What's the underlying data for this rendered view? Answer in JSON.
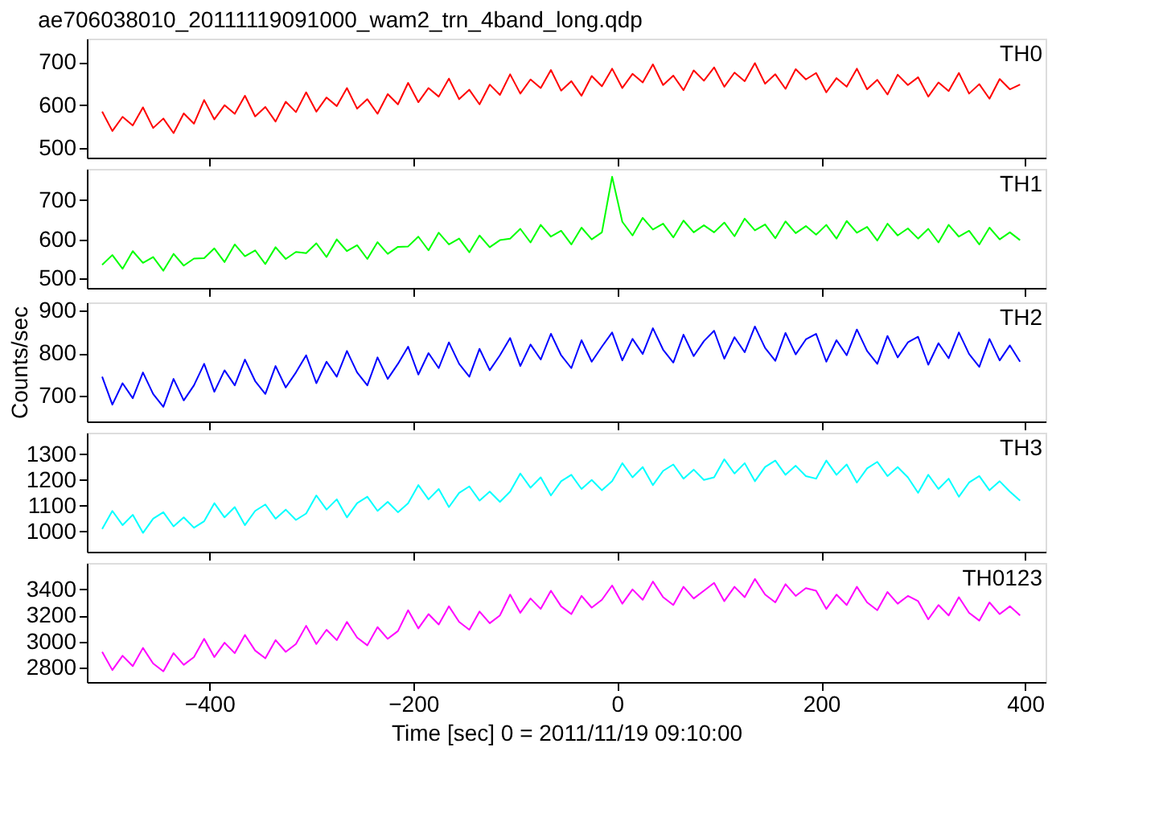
{
  "chart_data": [
    {
      "type": "line",
      "title": "ae706038010_20111119091000_wam2_trn_4band_long.qdp",
      "xlim": [
        -520,
        420
      ],
      "xticks": [
        -400,
        -200,
        0,
        200,
        400
      ],
      "ylim": [
        478,
        755
      ],
      "yticks": [
        500,
        600,
        700
      ],
      "tick_labels": "y",
      "x": [
        -505,
        -495,
        -485,
        -475,
        -465,
        -455,
        -445,
        -435,
        -425,
        -415,
        -405,
        -395,
        -385,
        -375,
        -365,
        -355,
        -345,
        -335,
        -325,
        -315,
        -305,
        -295,
        -285,
        -275,
        -265,
        -255,
        -245,
        -235,
        -225,
        -215,
        -205,
        -195,
        -185,
        -175,
        -165,
        -155,
        -145,
        -135,
        -125,
        -115,
        -105,
        -95,
        -85,
        -75,
        -65,
        -55,
        -45,
        -35,
        -25,
        -15,
        -5,
        5,
        15,
        25,
        35,
        45,
        55,
        65,
        75,
        85,
        95,
        105,
        115,
        125,
        135,
        145,
        155,
        165,
        175,
        185,
        195,
        205,
        215,
        225,
        235,
        245,
        255,
        265,
        275,
        285,
        295,
        305,
        315,
        325,
        335,
        345,
        355,
        365,
        375,
        385,
        395
      ],
      "series": [
        {
          "name": "TH0",
          "color": "#ff0000",
          "values": [
            585,
            540,
            573,
            553,
            595,
            547,
            569,
            535,
            581,
            557,
            612,
            567,
            600,
            580,
            622,
            574,
            596,
            562,
            608,
            584,
            630,
            585,
            618,
            598,
            640,
            592,
            614,
            580,
            626,
            602,
            652,
            607,
            640,
            620,
            662,
            614,
            636,
            602,
            648,
            624,
            672,
            627,
            660,
            640,
            682,
            634,
            656,
            622,
            668,
            644,
            685,
            640,
            673,
            653,
            695,
            647,
            669,
            635,
            681,
            657,
            688,
            643,
            676,
            656,
            698,
            650,
            672,
            638,
            684,
            660,
            675,
            630,
            663,
            643,
            685,
            637,
            659,
            625,
            671,
            647,
            665,
            620,
            653,
            633,
            675,
            627,
            649,
            615,
            661,
            637,
            648
          ]
        }
      ]
    },
    {
      "type": "line",
      "xlim": [
        -520,
        420
      ],
      "xticks": [
        -400,
        -200,
        0,
        200,
        400
      ],
      "ylim": [
        476,
        780
      ],
      "yticks": [
        500,
        600,
        700
      ],
      "tick_labels": "y",
      "x": [
        -505,
        -495,
        -485,
        -475,
        -465,
        -455,
        -445,
        -435,
        -425,
        -415,
        -405,
        -395,
        -385,
        -375,
        -365,
        -355,
        -345,
        -335,
        -325,
        -315,
        -305,
        -295,
        -285,
        -275,
        -265,
        -255,
        -245,
        -235,
        -225,
        -215,
        -205,
        -195,
        -185,
        -175,
        -165,
        -155,
        -145,
        -135,
        -125,
        -115,
        -105,
        -95,
        -85,
        -75,
        -65,
        -55,
        -45,
        -35,
        -25,
        -15,
        -5,
        5,
        15,
        25,
        35,
        45,
        55,
        65,
        75,
        85,
        95,
        105,
        115,
        125,
        135,
        145,
        155,
        165,
        175,
        185,
        195,
        205,
        215,
        225,
        235,
        245,
        255,
        265,
        275,
        285,
        295,
        305,
        315,
        325,
        335,
        345,
        355,
        365,
        375,
        385,
        395
      ],
      "series": [
        {
          "name": "TH1",
          "color": "#00ff00",
          "values": [
            535,
            560,
            525,
            570,
            540,
            555,
            520,
            563,
            533,
            551,
            552,
            577,
            542,
            587,
            557,
            572,
            537,
            580,
            550,
            568,
            565,
            590,
            555,
            600,
            570,
            585,
            550,
            593,
            563,
            581,
            582,
            607,
            572,
            617,
            587,
            602,
            567,
            610,
            580,
            598,
            602,
            627,
            592,
            637,
            607,
            622,
            587,
            630,
            600,
            618,
            760,
            645,
            610,
            655,
            625,
            640,
            605,
            648,
            618,
            636,
            618,
            643,
            608,
            653,
            623,
            638,
            603,
            646,
            616,
            634,
            612,
            637,
            602,
            647,
            617,
            632,
            597,
            640,
            610,
            628,
            602,
            627,
            592,
            637,
            607,
            622,
            587,
            630,
            600,
            618,
            598
          ]
        }
      ]
    },
    {
      "type": "line",
      "ylabel": "Counts/sec",
      "xlim": [
        -520,
        420
      ],
      "xticks": [
        -400,
        -200,
        0,
        200,
        400
      ],
      "ylim": [
        641,
        918
      ],
      "yticks": [
        700,
        800,
        900
      ],
      "tick_labels": "y",
      "x": [
        -505,
        -495,
        -485,
        -475,
        -465,
        -455,
        -445,
        -435,
        -425,
        -415,
        -405,
        -395,
        -385,
        -375,
        -365,
        -355,
        -345,
        -335,
        -325,
        -315,
        -305,
        -295,
        -285,
        -275,
        -265,
        -255,
        -245,
        -235,
        -225,
        -215,
        -205,
        -195,
        -185,
        -175,
        -165,
        -155,
        -145,
        -135,
        -125,
        -115,
        -105,
        -95,
        -85,
        -75,
        -65,
        -55,
        -45,
        -35,
        -25,
        -15,
        -5,
        5,
        15,
        25,
        35,
        45,
        55,
        65,
        75,
        85,
        95,
        105,
        115,
        125,
        135,
        145,
        155,
        165,
        175,
        185,
        195,
        205,
        215,
        225,
        235,
        245,
        255,
        265,
        275,
        285,
        295,
        305,
        315,
        325,
        335,
        345,
        355,
        365,
        375,
        385,
        395
      ],
      "series": [
        {
          "name": "TH2",
          "color": "#0000ff",
          "values": [
            745,
            680,
            730,
            695,
            755,
            705,
            675,
            740,
            690,
            725,
            775,
            710,
            760,
            725,
            785,
            735,
            705,
            770,
            720,
            755,
            795,
            730,
            780,
            745,
            805,
            755,
            725,
            790,
            740,
            775,
            815,
            750,
            800,
            765,
            825,
            775,
            745,
            810,
            760,
            795,
            835,
            770,
            820,
            785,
            845,
            795,
            765,
            830,
            780,
            815,
            848,
            783,
            833,
            798,
            858,
            808,
            778,
            843,
            793,
            828,
            852,
            787,
            837,
            802,
            862,
            812,
            782,
            847,
            797,
            832,
            845,
            780,
            830,
            795,
            855,
            805,
            775,
            840,
            790,
            825,
            838,
            773,
            823,
            788,
            848,
            798,
            768,
            833,
            783,
            818,
            780
          ]
        }
      ]
    },
    {
      "type": "line",
      "xlim": [
        -520,
        420
      ],
      "xticks": [
        -400,
        -200,
        0,
        200,
        400
      ],
      "ylim": [
        922,
        1383
      ],
      "yticks": [
        1000,
        1100,
        1200,
        1300
      ],
      "tick_labels": "y",
      "x": [
        -505,
        -495,
        -485,
        -475,
        -465,
        -455,
        -445,
        -435,
        -425,
        -415,
        -405,
        -395,
        -385,
        -375,
        -365,
        -355,
        -345,
        -335,
        -325,
        -315,
        -305,
        -295,
        -285,
        -275,
        -265,
        -255,
        -245,
        -235,
        -225,
        -215,
        -205,
        -195,
        -185,
        -175,
        -165,
        -155,
        -145,
        -135,
        -125,
        -115,
        -105,
        -95,
        -85,
        -75,
        -65,
        -55,
        -45,
        -35,
        -25,
        -15,
        -5,
        5,
        15,
        25,
        35,
        45,
        55,
        65,
        75,
        85,
        95,
        105,
        115,
        125,
        135,
        145,
        155,
        165,
        175,
        185,
        195,
        205,
        215,
        225,
        235,
        245,
        255,
        265,
        275,
        285,
        295,
        305,
        315,
        325,
        335,
        345,
        355,
        365,
        375,
        385,
        395
      ],
      "series": [
        {
          "name": "TH3",
          "color": "#00ffff",
          "values": [
            1010,
            1080,
            1025,
            1065,
            995,
            1050,
            1075,
            1020,
            1055,
            1015,
            1040,
            1110,
            1055,
            1095,
            1025,
            1080,
            1105,
            1050,
            1085,
            1045,
            1070,
            1140,
            1085,
            1125,
            1055,
            1110,
            1135,
            1080,
            1115,
            1075,
            1110,
            1180,
            1125,
            1165,
            1095,
            1150,
            1175,
            1120,
            1155,
            1115,
            1155,
            1225,
            1170,
            1210,
            1140,
            1195,
            1220,
            1165,
            1200,
            1160,
            1195,
            1265,
            1210,
            1250,
            1180,
            1235,
            1260,
            1205,
            1240,
            1200,
            1210,
            1280,
            1225,
            1265,
            1195,
            1250,
            1275,
            1220,
            1255,
            1215,
            1205,
            1275,
            1220,
            1260,
            1190,
            1245,
            1270,
            1215,
            1250,
            1210,
            1150,
            1220,
            1165,
            1205,
            1135,
            1190,
            1215,
            1160,
            1195,
            1155,
            1120
          ]
        }
      ]
    },
    {
      "type": "line",
      "xlabel": "Time [sec] 0 = 2011/11/19 09:10:00",
      "xlim": [
        -520,
        420
      ],
      "xticks": [
        -400,
        -200,
        0,
        200,
        400
      ],
      "ylim": [
        2688,
        3603
      ],
      "yticks": [
        2800,
        3000,
        3200,
        3400
      ],
      "x": [
        -505,
        -495,
        -485,
        -475,
        -465,
        -455,
        -445,
        -435,
        -425,
        -415,
        -405,
        -395,
        -385,
        -375,
        -365,
        -355,
        -345,
        -335,
        -325,
        -315,
        -305,
        -295,
        -285,
        -275,
        -265,
        -255,
        -245,
        -235,
        -225,
        -215,
        -205,
        -195,
        -185,
        -175,
        -165,
        -155,
        -145,
        -135,
        -125,
        -115,
        -105,
        -95,
        -85,
        -75,
        -65,
        -55,
        -45,
        -35,
        -25,
        -15,
        -5,
        5,
        15,
        25,
        35,
        45,
        55,
        65,
        75,
        85,
        95,
        105,
        115,
        125,
        135,
        145,
        155,
        165,
        175,
        185,
        195,
        205,
        215,
        225,
        235,
        245,
        255,
        265,
        275,
        285,
        295,
        305,
        315,
        325,
        335,
        345,
        355,
        365,
        375,
        385,
        395
      ],
      "series": [
        {
          "name": "TH0123",
          "color": "#ff00ff",
          "values": [
            2920,
            2780,
            2890,
            2810,
            2950,
            2830,
            2770,
            2910,
            2820,
            2880,
            3020,
            2880,
            2990,
            2910,
            3050,
            2930,
            2870,
            3010,
            2920,
            2980,
            3120,
            2980,
            3090,
            3010,
            3150,
            3030,
            2970,
            3110,
            3020,
            3080,
            3240,
            3100,
            3210,
            3130,
            3270,
            3150,
            3090,
            3230,
            3140,
            3200,
            3360,
            3220,
            3330,
            3250,
            3390,
            3270,
            3210,
            3350,
            3260,
            3320,
            3430,
            3290,
            3400,
            3320,
            3460,
            3340,
            3280,
            3420,
            3330,
            3390,
            3450,
            3310,
            3420,
            3340,
            3480,
            3360,
            3300,
            3440,
            3350,
            3410,
            3390,
            3250,
            3360,
            3280,
            3420,
            3300,
            3240,
            3380,
            3290,
            3350,
            3310,
            3170,
            3280,
            3200,
            3340,
            3220,
            3160,
            3300,
            3210,
            3270,
            3200
          ]
        }
      ]
    }
  ]
}
